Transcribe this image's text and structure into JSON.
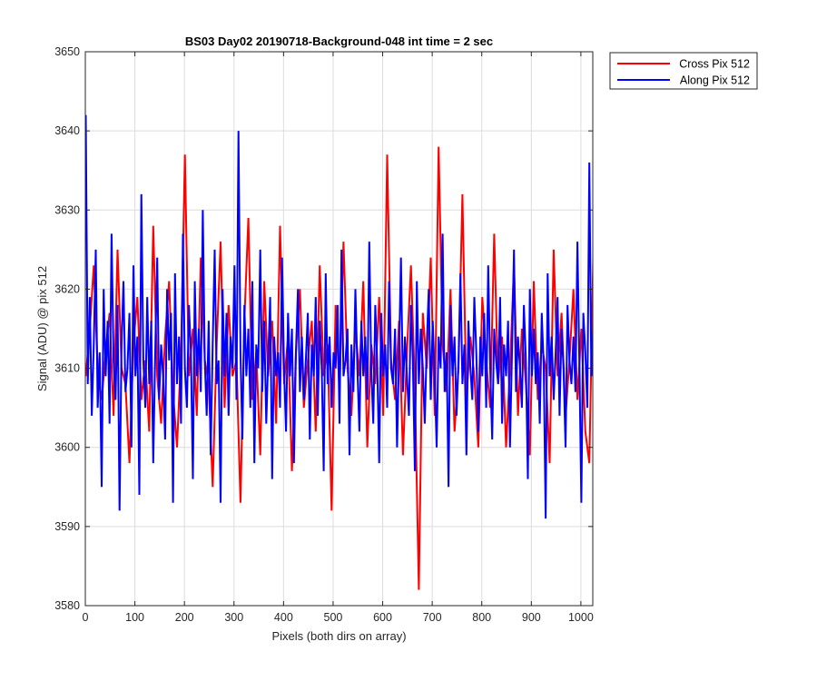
{
  "chart_data": {
    "type": "line",
    "title": "BS03 Day02 20190718-Background-048 int time = 2 sec",
    "xlabel": "Pixels (both dirs on array)",
    "ylabel": "Signal (ADU) @ pix 512",
    "xlim": [
      0,
      1024
    ],
    "ylim": [
      3580,
      3650
    ],
    "xticks": [
      0,
      100,
      200,
      300,
      400,
      500,
      600,
      700,
      800,
      900,
      1000
    ],
    "yticks": [
      3580,
      3590,
      3600,
      3610,
      3620,
      3630,
      3640,
      3650
    ],
    "grid": true,
    "legend_location": "outside-top-right",
    "series": [
      {
        "name": "Cross Pix 512",
        "color": "#ff0000",
        "x_start": 1,
        "x_step": 8,
        "values": [
          3609,
          3615,
          3623,
          3610,
          3606,
          3612,
          3617,
          3604,
          3625,
          3610,
          3608,
          3598,
          3613,
          3619,
          3606,
          3611,
          3602,
          3628,
          3609,
          3603,
          3614,
          3621,
          3607,
          3600,
          3612,
          3637,
          3609,
          3615,
          3604,
          3624,
          3611,
          3608,
          3595,
          3613,
          3626,
          3605,
          3618,
          3609,
          3611,
          3593,
          3616,
          3629,
          3606,
          3612,
          3599,
          3621,
          3609,
          3616,
          3603,
          3628,
          3608,
          3614,
          3597,
          3612,
          3620,
          3605,
          3611,
          3616,
          3602,
          3623,
          3609,
          3613,
          3592,
          3618,
          3607,
          3626,
          3610,
          3604,
          3615,
          3609,
          3621,
          3600,
          3613,
          3608,
          3619,
          3604,
          3637,
          3611,
          3606,
          3616,
          3599,
          3612,
          3623,
          3608,
          3582,
          3617,
          3610,
          3624,
          3604,
          3638,
          3613,
          3607,
          3620,
          3602,
          3610,
          3632,
          3606,
          3614,
          3609,
          3600,
          3619,
          3611,
          3605,
          3627,
          3608,
          3614,
          3600,
          3610,
          3623,
          3604,
          3615,
          3608,
          3599,
          3621,
          3606,
          3613,
          3610,
          3598,
          3625,
          3609,
          3617,
          3604,
          3611,
          3620,
          3606,
          3615,
          3602,
          3598,
          3624
        ]
      },
      {
        "name": "Along Pix 512",
        "color": "#0000ff",
        "x_start": 1,
        "x_step": 4,
        "values": [
          3642,
          3608,
          3619,
          3604,
          3613,
          3625,
          3605,
          3612,
          3595,
          3620,
          3609,
          3616,
          3603,
          3627,
          3611,
          3606,
          3618,
          3592,
          3613,
          3621,
          3607,
          3610,
          3617,
          3600,
          3623,
          3609,
          3614,
          3594,
          3632,
          3611,
          3605,
          3619,
          3608,
          3616,
          3598,
          3612,
          3624,
          3606,
          3613,
          3609,
          3601,
          3620,
          3611,
          3617,
          3593,
          3622,
          3608,
          3614,
          3603,
          3627,
          3610,
          3605,
          3618,
          3612,
          3596,
          3621,
          3609,
          3615,
          3607,
          3630,
          3611,
          3604,
          3616,
          3599,
          3613,
          3625,
          3608,
          3611,
          3593,
          3620,
          3609,
          3617,
          3604,
          3614,
          3610,
          3623,
          3606,
          3640,
          3612,
          3601,
          3618,
          3609,
          3615,
          3605,
          3621,
          3598,
          3613,
          3610,
          3625,
          3607,
          3616,
          3603,
          3611,
          3619,
          3596,
          3614,
          3609,
          3612,
          3605,
          3624,
          3610,
          3602,
          3617,
          3609,
          3615,
          3598,
          3612,
          3620,
          3607,
          3614,
          3606,
          3611,
          3617,
          3601,
          3613,
          3609,
          3619,
          3604,
          3616,
          3610,
          3597,
          3622,
          3608,
          3614,
          3605,
          3612,
          3610,
          3618,
          3603,
          3625,
          3609,
          3611,
          3615,
          3599,
          3613,
          3607,
          3620,
          3610,
          3602,
          3616,
          3609,
          3614,
          3606,
          3626,
          3610,
          3603,
          3618,
          3611,
          3598,
          3617,
          3609,
          3613,
          3605,
          3621,
          3610,
          3608,
          3615,
          3600,
          3612,
          3624,
          3607,
          3614,
          3609,
          3604,
          3618,
          3611,
          3597,
          3621,
          3608,
          3615,
          3610,
          3603,
          3613,
          3620,
          3606,
          3616,
          3609,
          3600,
          3614,
          3610,
          3627,
          3607,
          3612,
          3595,
          3618,
          3609,
          3614,
          3604,
          3611,
          3622,
          3608,
          3613,
          3599,
          3616,
          3610,
          3606,
          3619,
          3612,
          3602,
          3614,
          3609,
          3617,
          3605,
          3623,
          3610,
          3601,
          3615,
          3611,
          3608,
          3619,
          3603,
          3613,
          3609,
          3616,
          3600,
          3612,
          3625,
          3607,
          3614,
          3610,
          3605,
          3618,
          3611,
          3596,
          3620,
          3609,
          3615,
          3608,
          3612,
          3603,
          3617,
          3610,
          3591,
          3622,
          3609,
          3614,
          3606,
          3612,
          3619,
          3604,
          3615,
          3610,
          3600,
          3618,
          3611,
          3608,
          3614,
          3607,
          3626,
          3610,
          3593,
          3617,
          3612,
          3605,
          3636,
          3609,
          3615,
          3620,
          3604,
          3611,
          3626,
          3608,
          3614,
          3610
        ]
      }
    ]
  }
}
